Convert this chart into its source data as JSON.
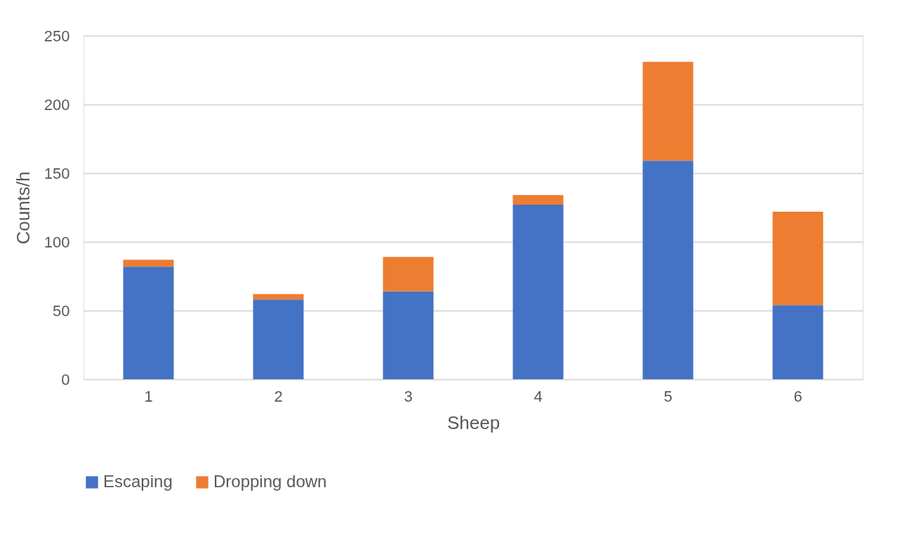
{
  "chart_data": {
    "type": "bar",
    "stacked": true,
    "xlabel": "Sheep",
    "ylabel": "Counts/h",
    "categories": [
      "1",
      "2",
      "3",
      "4",
      "5",
      "6"
    ],
    "series": [
      {
        "name": "Escaping",
        "color": "#4472c4",
        "values": [
          82,
          58,
          64,
          127,
          159,
          54
        ]
      },
      {
        "name": "Dropping down",
        "color": "#ed7d31",
        "values": [
          5,
          4,
          25,
          7,
          72,
          68
        ]
      }
    ],
    "ylim": [
      0,
      250
    ],
    "yticks": [
      0,
      50,
      100,
      150,
      200,
      250
    ],
    "grid": "y",
    "legend": "bottom"
  }
}
